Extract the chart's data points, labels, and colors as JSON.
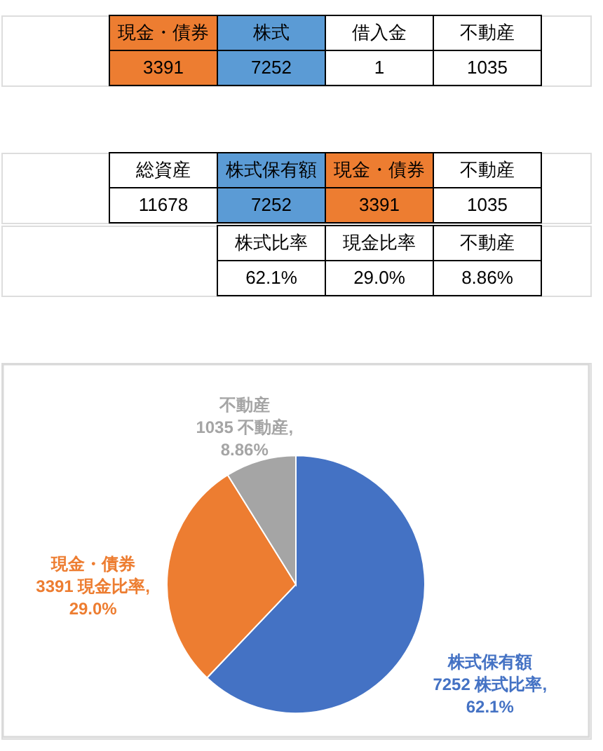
{
  "chart_data": [
    {
      "type": "other",
      "categories": [
        "現金・債券",
        "株式",
        "借入金",
        "不動産"
      ],
      "values": [
        3391,
        7252,
        1,
        1035
      ],
      "colors": [
        "#ed7d31",
        "#5b9bd5",
        "#ffffff",
        "#ffffff"
      ],
      "data_labels": true
    },
    {
      "type": "other",
      "categories": [
        "総資産",
        "株式保有額",
        "現金・債券",
        "不動産"
      ],
      "values": [
        11678,
        7252,
        3391,
        1035
      ],
      "colors": [
        "#ffffff",
        "#5b9bd5",
        "#ed7d31",
        "#ffffff"
      ],
      "data_labels": true
    },
    {
      "type": "other",
      "categories": [
        null,
        "株式比率",
        "現金比率",
        "不動産"
      ],
      "values": [
        null,
        62.1,
        29.0,
        8.86
      ],
      "value_labels": [
        null,
        "62.1%",
        "29.0%",
        "8.86%"
      ]
    },
    {
      "type": "pie",
      "categories": [
        "株式保有額",
        "現金・債券",
        "不動産"
      ],
      "values": [
        7252,
        3391,
        1035
      ],
      "colors": [
        "#4472c4",
        "#ed7d31",
        "#a5a5a5"
      ],
      "value_labels": [
        "7252 株式比率, 62.1%",
        "3391 現金比率, 29.0%",
        "1035 不動産, 8.86%"
      ]
    }
  ]
}
